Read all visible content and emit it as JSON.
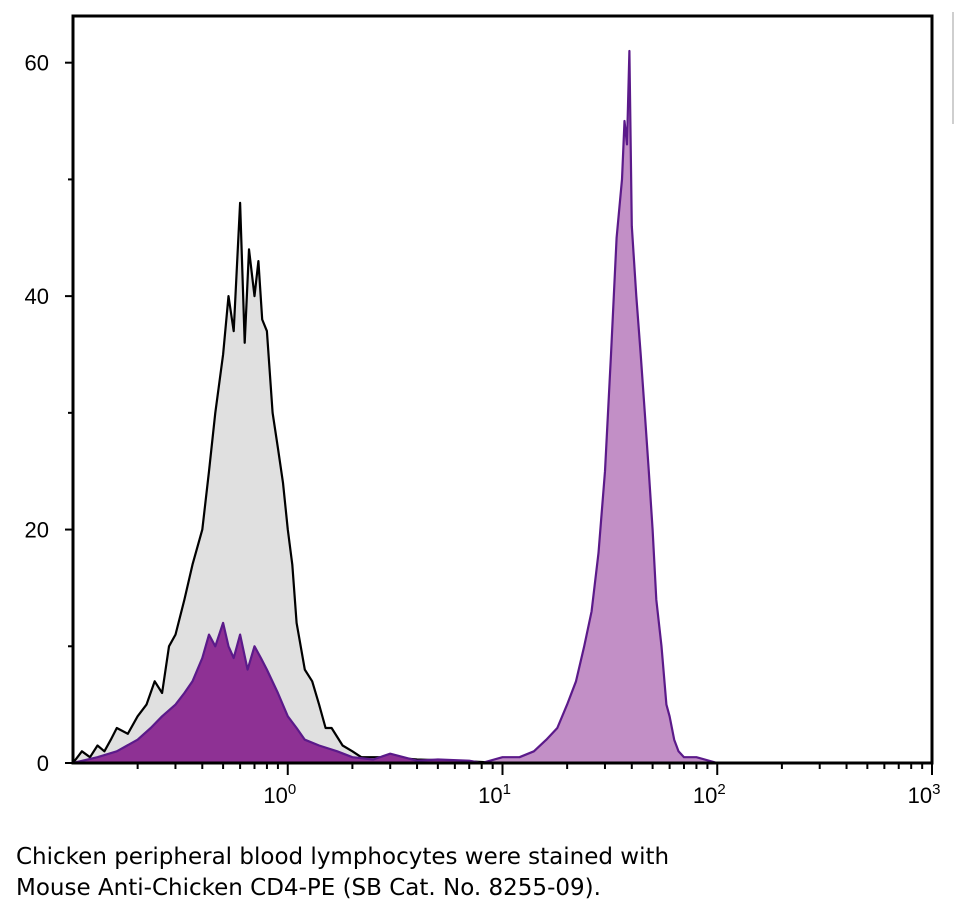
{
  "chart_data": {
    "type": "area",
    "title": "",
    "xlabel": "",
    "ylabel": "",
    "x_scale": "log",
    "xlim": [
      0.1,
      1000
    ],
    "ylim": [
      0,
      64
    ],
    "grid": false,
    "y_ticks": [
      {
        "value": 0,
        "label": "0"
      },
      {
        "value": 20,
        "label": "20"
      },
      {
        "value": 40,
        "label": "40"
      },
      {
        "value": 60,
        "label": "60"
      }
    ],
    "x_ticks": [
      {
        "value": 1,
        "base": "10",
        "exp": "0"
      },
      {
        "value": 10,
        "base": "10",
        "exp": "1"
      },
      {
        "value": 100,
        "base": "10",
        "exp": "2"
      },
      {
        "value": 1000,
        "base": "10",
        "exp": "3"
      }
    ],
    "series": [
      {
        "fill": "#e0e0e0",
        "stroke": "#000000",
        "x": [
          0.1,
          0.11,
          0.12,
          0.13,
          0.14,
          0.15,
          0.16,
          0.18,
          0.2,
          0.22,
          0.24,
          0.26,
          0.28,
          0.3,
          0.33,
          0.36,
          0.4,
          0.43,
          0.46,
          0.5,
          0.53,
          0.56,
          0.6,
          0.63,
          0.66,
          0.7,
          0.73,
          0.76,
          0.8,
          0.85,
          0.9,
          0.95,
          1.0,
          1.05,
          1.1,
          1.2,
          1.3,
          1.4,
          1.5,
          1.6,
          1.8,
          2.0,
          2.2,
          2.5,
          3.0,
          4.0,
          6.0,
          10,
          20
        ],
        "y": [
          0,
          1,
          0.5,
          1.5,
          1,
          2,
          3,
          2.5,
          4,
          5,
          7,
          6,
          10,
          11,
          14,
          17,
          20,
          25,
          30,
          35,
          40,
          37,
          48,
          36,
          44,
          40,
          43,
          38,
          37,
          30,
          27,
          24,
          20,
          17,
          12,
          8,
          7,
          5,
          3,
          3,
          1.5,
          1,
          0.5,
          0.5,
          0.5,
          0.3,
          0.2,
          0,
          0
        ]
      },
      {
        "fill": "#8e3194",
        "stroke": "#5b1a8a",
        "x": [
          0.1,
          0.13,
          0.16,
          0.2,
          0.23,
          0.26,
          0.3,
          0.33,
          0.36,
          0.4,
          0.43,
          0.46,
          0.5,
          0.53,
          0.56,
          0.6,
          0.65,
          0.7,
          0.75,
          0.8,
          0.9,
          1.0,
          1.1,
          1.2,
          1.4,
          1.7,
          2.0,
          2.5,
          3.0,
          4.0,
          5.0,
          7.0,
          8.0
        ],
        "y": [
          0,
          0.5,
          1,
          2,
          3,
          4,
          5,
          6,
          7,
          9,
          11,
          10,
          12,
          10,
          9,
          11,
          8,
          10,
          9,
          8,
          6,
          4,
          3,
          2,
          1.5,
          1,
          0.5,
          0.3,
          0.8,
          0.2,
          0.3,
          0.2,
          0
        ]
      },
      {
        "fill": "#c28fc6",
        "stroke": "#5b1a8a",
        "x": [
          8,
          10,
          12,
          14,
          16,
          18,
          20,
          22,
          24,
          26,
          28,
          30,
          32,
          34,
          36,
          37,
          38,
          39,
          40,
          42,
          44,
          46,
          48,
          50,
          52,
          55,
          58,
          60,
          63,
          66,
          70,
          80,
          100,
          150,
          300,
          1000
        ],
        "y": [
          0,
          0.5,
          0.5,
          1,
          2,
          3,
          5,
          7,
          10,
          13,
          18,
          25,
          35,
          45,
          50,
          55,
          53,
          61,
          46,
          40,
          35,
          30,
          25,
          20,
          14,
          10,
          5,
          4,
          2,
          1,
          0.5,
          0.5,
          0,
          0,
          0,
          0
        ]
      }
    ]
  },
  "caption": {
    "line1": "Chicken peripheral blood lymphocytes were stained with",
    "line2": "Mouse Anti-Chicken CD4-PE (SB Cat. No. 8255-09)."
  }
}
